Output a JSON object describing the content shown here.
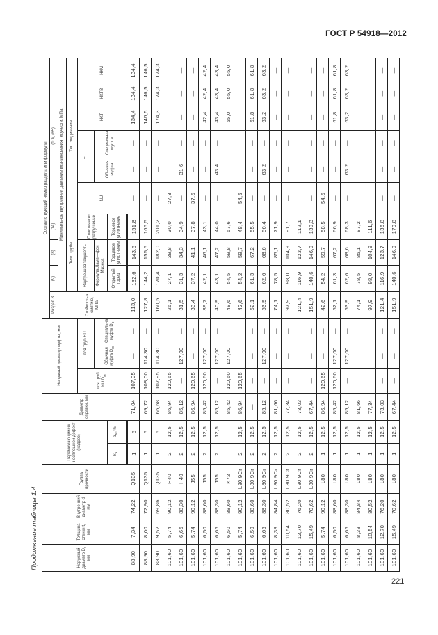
{
  "page": {
    "doc_code": "ГОСТ Р 54918—2012",
    "page_number": "221",
    "caption": "Продолжение таблицы 1.4"
  },
  "header": {
    "outer_diameter": "Наружный диаметр D, мм",
    "wall_thickness": "Толщина стенки t, мм",
    "inner_diameter": "Внутренний диаметр d, мм",
    "strength_group": "Группа прочности",
    "defect": "Перемежающийся/ несплошной дефект (надрез)",
    "defect_k": "k",
    "defect_k_sub": "н",
    "defect_a": "a",
    "defect_a_sub": "N",
    "defect_a_unit": ", %",
    "mandrel": "Диаметр оправки, мм",
    "coupling_diameter": "Наружный диаметр муфты, мм",
    "coupling_nu": "для труб NU D",
    "coupling_nu_sub": "м",
    "coupling_eu": "для труб EU",
    "coupling_regular": "Обычная муфта D",
    "coupling_regular_sub": "м",
    "coupling_special": "Специальная муфта D",
    "coupling_special_sub": "с",
    "section_ref": "Соответствующий номер раздела или формулы",
    "section_8": "Раздел 8",
    "ref_9": "(9)",
    "ref_8": "(8)",
    "ref_14": "(14)",
    "ref_10_65": "(10), (65)",
    "collapse": "Стойкость к смятию, МПа",
    "min_pressure": "Минимальное внутреннее давление возникновения текучести, МПа",
    "pipe_body": "Тело трубы",
    "connection_type": "Тип соединения",
    "internal_yield": "Внутренняя текучесть",
    "plastic_failure": "Пластическое разрушение",
    "lame_formula": "Формула Ламе—фон Мизеса",
    "open_end": "Открытый торец",
    "end_seal_1": "Торцевое уплотнение",
    "end_seal_2": "Торцевое уплотнение",
    "conn_nu": "NU",
    "conn_eu": "EU",
    "conn_eu_regular": "Обычная муфта",
    "conn_eu_special": "Специальная муфта",
    "conn_nkt": "НКТ",
    "conn_nktv": "НКТВ",
    "conn_nkm": "НКМ"
  },
  "rows": [
    [
      "88,90",
      "7,34",
      "74,22",
      "Q135",
      "1",
      "5",
      "71,04",
      "107,95",
      "—",
      "—",
      "113,0",
      "132,6",
      "143,6",
      "151,8",
      "—",
      "—",
      "—",
      "134,4",
      "134,4",
      "134,4"
    ],
    [
      "88,90",
      "8,00",
      "72,90",
      "Q135",
      "1",
      "5",
      "69,72",
      "108,00",
      "114,30",
      "—",
      "127,8",
      "144,2",
      "155,5",
      "166,5",
      "—",
      "—",
      "—",
      "146,5",
      "146,5",
      "146,5"
    ],
    [
      "88,90",
      "9,52",
      "69,86",
      "Q135",
      "1",
      "5",
      "66,68",
      "107,95",
      "114,30",
      "—",
      "160,5",
      "170,4",
      "182,0",
      "201,2",
      "—",
      "—",
      "—",
      "174,3",
      "174,3",
      "174,3"
    ],
    [
      "101,60",
      "5,74",
      "90,12",
      "H40",
      "2",
      "12,5",
      "86,94",
      "120,65",
      "—",
      "—",
      "26,1",
      "27,1",
      "29,8",
      "30,0",
      "27,3",
      "—",
      "—",
      "—",
      "—",
      "—"
    ],
    [
      "101,60",
      "6,65",
      "88,30",
      "H40",
      "2",
      "12,5",
      "85,12",
      "—",
      "127,00",
      "—",
      "31,5",
      "31,3",
      "34,3",
      "34,9",
      "—",
      "31,6",
      "—",
      "—",
      "—",
      "—"
    ],
    [
      "101,60",
      "5,74",
      "90,12",
      "J55",
      "2",
      "12,5",
      "86,94",
      "120,65",
      "—",
      "—",
      "33,4",
      "37,2",
      "41,1",
      "37,8",
      "37,5",
      "—",
      "—",
      "—",
      "—",
      "—"
    ],
    [
      "101,60",
      "6,50",
      "88,60",
      "J55",
      "2",
      "12,5",
      "85,42",
      "120,60",
      "127,00",
      "—",
      "39,7",
      "42,1",
      "46,1",
      "43,1",
      "—",
      "—",
      "—",
      "42,4",
      "42,4",
      "42,4"
    ],
    [
      "101,60",
      "6,65",
      "88,30",
      "J55",
      "2",
      "12,5",
      "85,12",
      "—",
      "127,00",
      "—",
      "40,9",
      "43,1",
      "47,2",
      "44,0",
      "—",
      "43,4",
      "—",
      "43,4",
      "43,4",
      "43,4"
    ],
    [
      "101,60",
      "6,50",
      "88,60",
      "K72",
      "—",
      "—",
      "85,42",
      "120,60",
      "127,00",
      "—",
      "48,6",
      "54,5",
      "59,8",
      "57,6",
      "—",
      "—",
      "—",
      "55,0",
      "55,0",
      "55,0"
    ],
    [
      "101,60",
      "5,74",
      "90,12",
      "L80 9Cr",
      "2",
      "12,5",
      "86,94",
      "120,65",
      "—",
      "—",
      "42,6",
      "54,2",
      "59,7",
      "48,4",
      "54,5",
      "—",
      "—",
      "—",
      "—",
      "—"
    ],
    [
      "101,60",
      "6,50",
      "88,60",
      "L80 9Cr",
      "2",
      "12,5",
      "—",
      "—",
      "—",
      "—",
      "52,1",
      "61,3",
      "67,2",
      "55,5",
      "—",
      "—",
      "—",
      "61,8",
      "61,8",
      "61,8"
    ],
    [
      "101,60",
      "6,65",
      "88,30",
      "L80 9Cr",
      "2",
      "12,5",
      "85,12",
      "—",
      "127,00",
      "—",
      "53,9",
      "62,6",
      "68,6",
      "56,4",
      "—",
      "63,2",
      "—",
      "63,2",
      "63,2",
      "63,2"
    ],
    [
      "101,60",
      "8,38",
      "84,84",
      "L80 9Cr",
      "2",
      "12,5",
      "81,66",
      "—",
      "—",
      "—",
      "74,1",
      "78,5",
      "85,1",
      "71,9",
      "—",
      "—",
      "—",
      "—",
      "—",
      "—"
    ],
    [
      "101,60",
      "10,54",
      "80,52",
      "L80 9Cr",
      "2",
      "12,5",
      "77,34",
      "—",
      "—",
      "—",
      "97,9",
      "98,0",
      "104,9",
      "91,7",
      "—",
      "—",
      "—",
      "—",
      "—",
      "—"
    ],
    [
      "101,60",
      "12,70",
      "76,20",
      "L80 9Cr",
      "2",
      "12,5",
      "73,03",
      "—",
      "—",
      "—",
      "121,4",
      "116,9",
      "123,7",
      "112,1",
      "—",
      "—",
      "—",
      "—",
      "—",
      "—"
    ],
    [
      "101,60",
      "15,49",
      "70,62",
      "L80 9Cr",
      "2",
      "12,5",
      "67,44",
      "—",
      "—",
      "—",
      "151,9",
      "140,6",
      "146,9",
      "139,3",
      "—",
      "—",
      "—",
      "—",
      "—",
      "—"
    ],
    [
      "101,60",
      "5,74",
      "90,12",
      "L80",
      "1",
      "12,5",
      "86,94",
      "120,65",
      "—",
      "—",
      "42,6",
      "54,2",
      "59,7",
      "58,5",
      "54,5",
      "—",
      "—",
      "—",
      "—",
      "—"
    ],
    [
      "101,60",
      "6,50",
      "88,60",
      "L80",
      "1",
      "12,5",
      "85,42",
      "120,60",
      "127,00",
      "—",
      "52,1",
      "61,3",
      "67,2",
      "66,9",
      "—",
      "—",
      "—",
      "61,8",
      "61,8",
      "61,8"
    ],
    [
      "101,60",
      "6,65",
      "88,30",
      "L80",
      "1",
      "12,5",
      "85,12",
      "—",
      "127,00",
      "—",
      "53,9",
      "62,6",
      "68,6",
      "68,3",
      "—",
      "63,2",
      "—",
      "63,2",
      "63,2",
      "63,2"
    ],
    [
      "101,60",
      "8,38",
      "84,84",
      "L80",
      "1",
      "12,5",
      "81,66",
      "—",
      "—",
      "—",
      "74,1",
      "78,5",
      "85,1",
      "87,2",
      "—",
      "—",
      "—",
      "—",
      "—",
      "—"
    ],
    [
      "101,60",
      "10,54",
      "80,52",
      "L80",
      "1",
      "12,5",
      "77,34",
      "—",
      "—",
      "—",
      "97,9",
      "98,0",
      "104,9",
      "111,6",
      "—",
      "—",
      "—",
      "—",
      "—",
      "—"
    ],
    [
      "101,60",
      "12,70",
      "76,20",
      "L80",
      "1",
      "12,5",
      "73,03",
      "—",
      "—",
      "—",
      "121,4",
      "116,9",
      "123,7",
      "136,8",
      "—",
      "—",
      "—",
      "—",
      "—",
      "—"
    ],
    [
      "101,60",
      "15,49",
      "70,62",
      "L80",
      "1",
      "12,5",
      "67,44",
      "—",
      "—",
      "—",
      "151,9",
      "140,6",
      "146,9",
      "170,8",
      "—",
      "—",
      "—",
      "—",
      "—",
      "—"
    ]
  ]
}
